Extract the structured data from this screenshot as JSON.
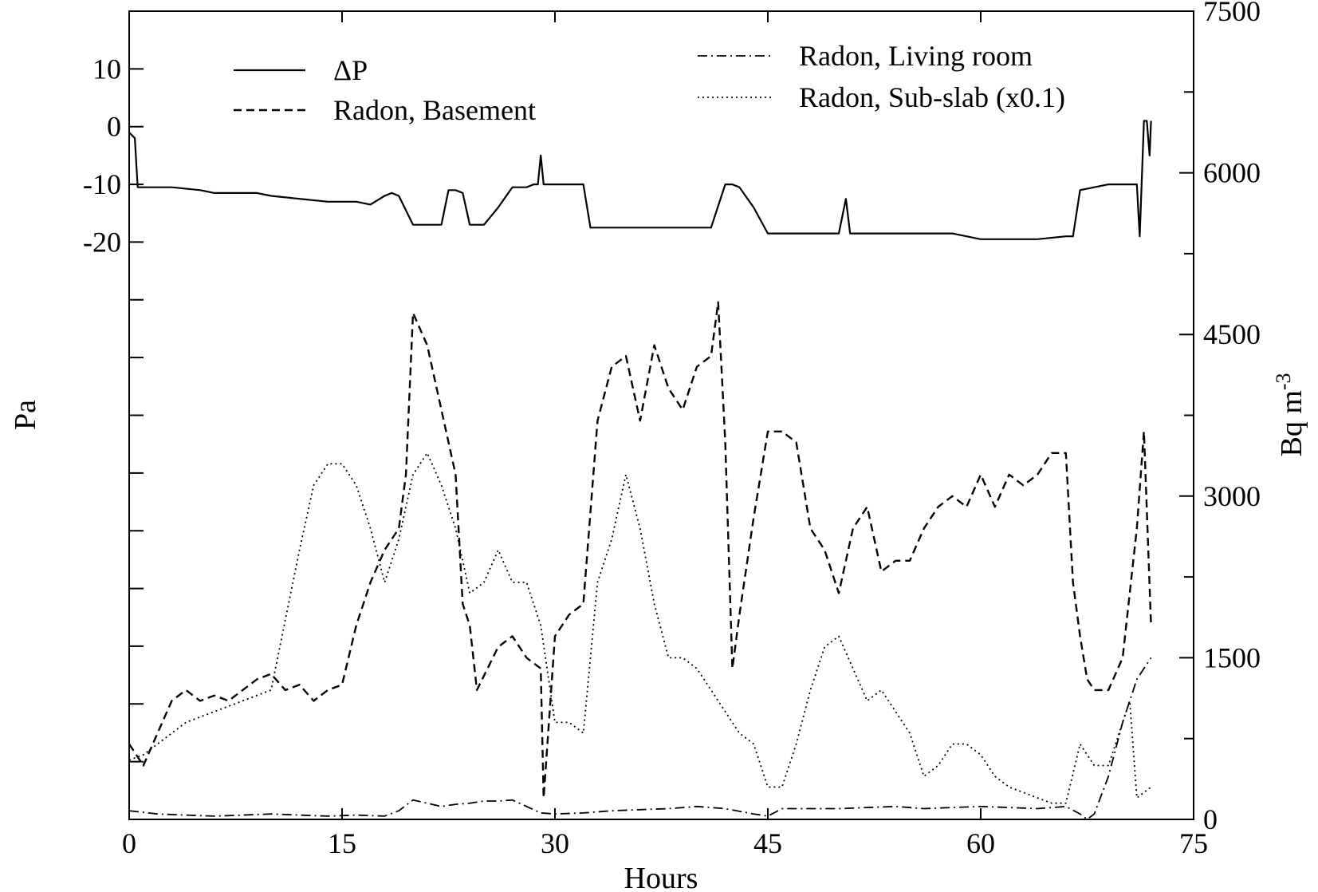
{
  "chart_data": {
    "type": "line",
    "xlabel": "Hours",
    "ylabel_left": "Pa",
    "ylabel_right": "Bq m",
    "ylabel_right_superscript": "-3",
    "xlim": [
      0,
      75
    ],
    "x_ticks": [
      0,
      15,
      30,
      45,
      60,
      75
    ],
    "left_ylim": [
      -120,
      20
    ],
    "left_ticks": [
      10,
      0,
      -10,
      -20
    ],
    "left_minor_ticks": [
      -30,
      -40,
      -50,
      -60,
      -70,
      -80,
      -90,
      -100,
      -110
    ],
    "right_ylim": [
      0,
      7500
    ],
    "right_ticks": [
      0,
      1500,
      3000,
      4500,
      6000,
      7500
    ],
    "right_minor_ticks": [
      750,
      2250,
      3750,
      5250,
      6750
    ],
    "grid": false,
    "legend": [
      {
        "label": "ΔP",
        "style": "solid",
        "position": "top-left"
      },
      {
        "label": "Radon, Basement",
        "style": "dashed",
        "position": "top-left"
      },
      {
        "label": "Radon, Living room",
        "style": "dashdot",
        "position": "top-right"
      },
      {
        "label": "Radon, Sub-slab (x0.1)",
        "style": "dotted",
        "position": "top-right"
      }
    ],
    "series": [
      {
        "name": "ΔP",
        "axis": "left",
        "style": "solid",
        "x": [
          0,
          0.4,
          0.6,
          1.5,
          3,
          5,
          6,
          8,
          9,
          10,
          12,
          14,
          16,
          17,
          18,
          18.5,
          19,
          20,
          20.2,
          21,
          22,
          22.5,
          23,
          23.5,
          24,
          24.5,
          25,
          26,
          27,
          28,
          28.5,
          28.8,
          29,
          29.2,
          29.5,
          31,
          32,
          32.5,
          34,
          36,
          38,
          40,
          41,
          42,
          42.5,
          43,
          44,
          45,
          46,
          50,
          50.5,
          50.8,
          51,
          55,
          56,
          58,
          60,
          62,
          64,
          66,
          66.5,
          67,
          68,
          69,
          70,
          71,
          71.2,
          71.5,
          71.7,
          71.9,
          72
        ],
        "y": [
          -1,
          -2,
          -10.5,
          -10.5,
          -10.5,
          -11,
          -11.5,
          -11.5,
          -11.5,
          -12,
          -12.5,
          -13,
          -13,
          -13.5,
          -12,
          -11.5,
          -12,
          -17,
          -17,
          -17,
          -17,
          -11,
          -11,
          -11.5,
          -17,
          -17,
          -17,
          -14,
          -10.5,
          -10.5,
          -10,
          -10,
          -5,
          -10,
          -10,
          -10,
          -10,
          -17.5,
          -17.5,
          -17.5,
          -17.5,
          -17.5,
          -17.5,
          -10,
          -10,
          -10.5,
          -14,
          -18.5,
          -18.5,
          -18.5,
          -12.5,
          -18.5,
          -18.5,
          -18.5,
          -18.5,
          -18.5,
          -19.5,
          -19.5,
          -19.5,
          -19,
          -19,
          -11,
          -10.5,
          -10,
          -10,
          -10,
          -19,
          1,
          1,
          -5,
          1
        ]
      },
      {
        "name": "Radon, Basement",
        "axis": "right",
        "style": "dashed",
        "x": [
          0,
          1,
          2,
          3,
          4,
          5,
          6,
          7,
          8,
          9,
          10,
          11,
          12,
          13,
          14,
          15,
          16,
          17,
          18,
          19,
          19.5,
          20,
          21,
          22,
          23,
          23.5,
          24,
          24.5,
          26,
          27,
          28,
          29,
          29.2,
          30,
          31,
          32,
          33,
          34,
          35,
          36,
          37,
          38,
          39,
          40,
          41,
          41.5,
          42,
          42.5,
          43,
          44,
          45,
          46,
          47,
          48,
          49,
          50,
          51,
          52,
          53,
          54,
          55,
          56,
          57,
          58,
          59,
          60,
          61,
          62,
          63,
          64,
          65,
          66,
          66.5,
          67,
          67.5,
          68,
          69,
          70,
          71,
          71.5,
          72
        ],
        "y": [
          700,
          500,
          800,
          1100,
          1200,
          1100,
          1150,
          1100,
          1200,
          1300,
          1350,
          1200,
          1250,
          1100,
          1200,
          1250,
          1800,
          2200,
          2500,
          2700,
          3200,
          4700,
          4400,
          3800,
          3200,
          2000,
          1800,
          1200,
          1600,
          1700,
          1500,
          1400,
          200,
          1700,
          1900,
          2000,
          3700,
          4200,
          4300,
          3700,
          4400,
          4000,
          3800,
          4200,
          4300,
          4800,
          3500,
          1400,
          1900,
          2800,
          3600,
          3600,
          3500,
          2700,
          2500,
          2100,
          2700,
          2900,
          2300,
          2400,
          2400,
          2700,
          2900,
          3000,
          2900,
          3200,
          2900,
          3200,
          3100,
          3200,
          3400,
          3400,
          2200,
          1700,
          1300,
          1200,
          1200,
          1500,
          2700,
          3600,
          1800
        ]
      },
      {
        "name": "Radon, Living room",
        "axis": "right",
        "style": "dashdot",
        "x": [
          0,
          2,
          4,
          6,
          8,
          10,
          12,
          14,
          16,
          18,
          19,
          20,
          21,
          22,
          23,
          24,
          25,
          26,
          27,
          28,
          29,
          30,
          32,
          34,
          36,
          38,
          40,
          42,
          44,
          45,
          46,
          48,
          50,
          52,
          54,
          56,
          58,
          60,
          62,
          64,
          66,
          67,
          67.5,
          68,
          69,
          70,
          71,
          72
        ],
        "y": [
          80,
          50,
          40,
          30,
          40,
          50,
          40,
          30,
          40,
          30,
          80,
          180,
          150,
          120,
          140,
          150,
          170,
          170,
          180,
          120,
          60,
          50,
          60,
          80,
          90,
          100,
          120,
          100,
          50,
          30,
          100,
          100,
          100,
          110,
          120,
          100,
          110,
          120,
          110,
          100,
          120,
          50,
          0,
          50,
          400,
          900,
          1300,
          1500
        ]
      },
      {
        "name": "Radon, Sub-slab (x0.1)",
        "axis": "right",
        "style": "dotted",
        "x": [
          0,
          1,
          2,
          4,
          6,
          8,
          10,
          12,
          13,
          14,
          15,
          16,
          17,
          18,
          19,
          20,
          21,
          22,
          23,
          24,
          25,
          26,
          27,
          28,
          29,
          30,
          31,
          32,
          33,
          34,
          35,
          36,
          37,
          38,
          39,
          40,
          41,
          42,
          43,
          44,
          45,
          46,
          47,
          48,
          49,
          50,
          51,
          52,
          53,
          54,
          55,
          56,
          57,
          58,
          59,
          60,
          61,
          62,
          63,
          64,
          65,
          66,
          67,
          68,
          69,
          70,
          70.5,
          71,
          72
        ],
        "y": [
          550,
          600,
          700,
          900,
          1000,
          1100,
          1200,
          2500,
          3100,
          3300,
          3300,
          3100,
          2700,
          2200,
          2600,
          3200,
          3400,
          3100,
          2700,
          2100,
          2200,
          2500,
          2200,
          2200,
          1800,
          900,
          900,
          800,
          2200,
          2600,
          3200,
          2700,
          2000,
          1500,
          1500,
          1400,
          1200,
          1000,
          800,
          700,
          300,
          300,
          700,
          1200,
          1600,
          1700,
          1400,
          1100,
          1200,
          1000,
          800,
          400,
          500,
          700,
          700,
          600,
          400,
          300,
          250,
          200,
          150,
          150,
          700,
          500,
          500,
          900,
          1100,
          200,
          300
        ]
      }
    ]
  }
}
